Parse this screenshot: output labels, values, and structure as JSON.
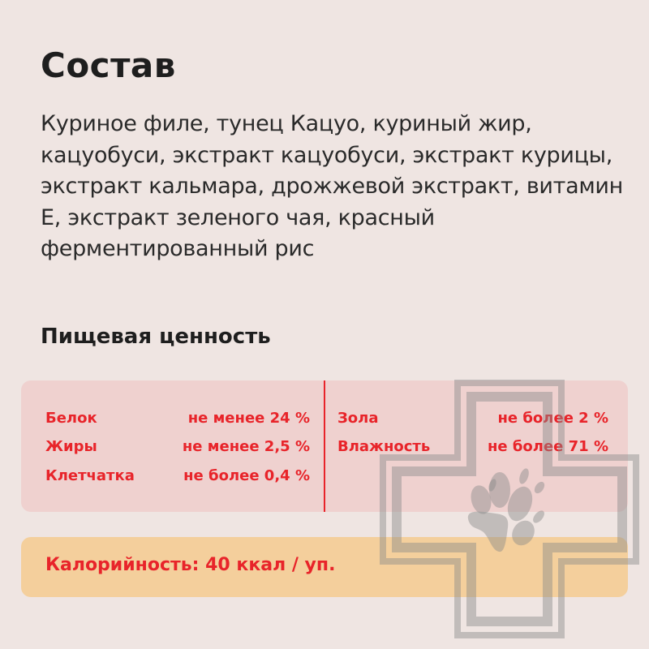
{
  "title": "Состав",
  "composition": "Куриное филе, тунец Кацуо, куриный жир, кацуобуси, экстракт кацуобуси, экстракт курицы, экстракт кальмара, дрожжевой экстракт, витамин Е, экстракт зеленого чая, красный ферментированный рис",
  "nutrition": {
    "title": "Пищевая ценность",
    "left": [
      {
        "name": "Белок",
        "value": "не менее 24 %"
      },
      {
        "name": "Жиры",
        "value": "не менее 2,5 %"
      },
      {
        "name": "Клетчатка",
        "value": "не более 0,4 %"
      }
    ],
    "right": [
      {
        "name": "Зола",
        "value": "не более 2 %"
      },
      {
        "name": "Влажность",
        "value": "не более 71 %"
      }
    ]
  },
  "calories": "Калорийность: 40 ккал / уп.",
  "watermark": "vet-cross-paw-logo",
  "colors": {
    "background": "#efe5e2",
    "accent": "#e8242a",
    "nutrition_box": "#efd1cf",
    "calorie_box": "#f4cf9c"
  }
}
